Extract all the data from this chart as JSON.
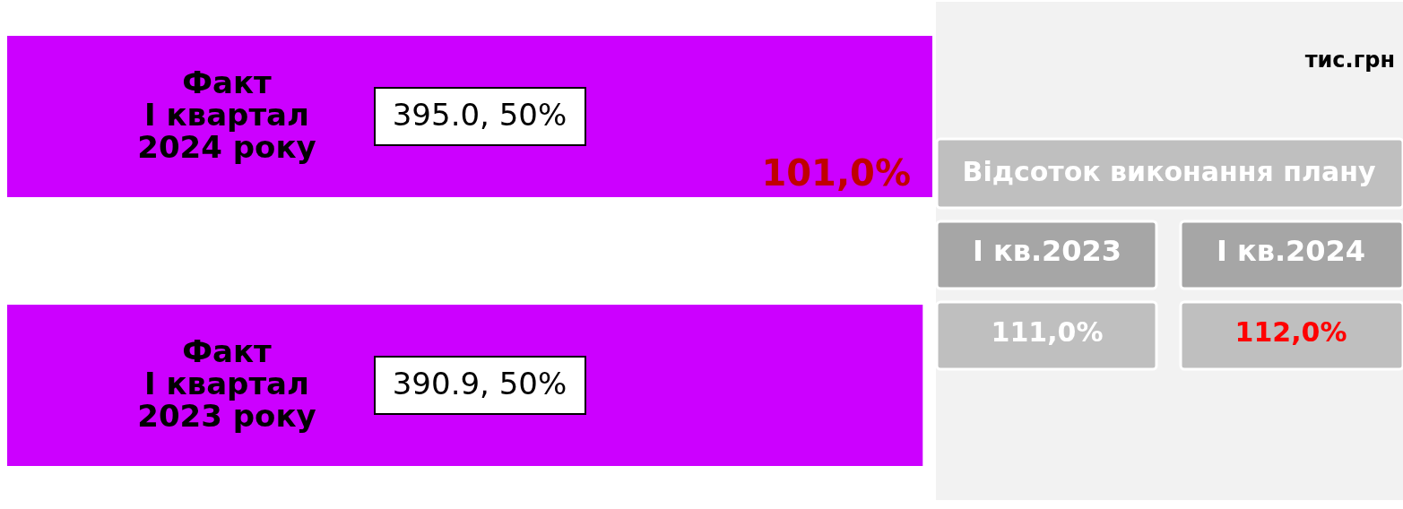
{
  "chart_data": {
    "type": "bar",
    "orientation": "horizontal",
    "categories": [
      "Факт\nІ квартал\n2024 року",
      "Факт\nІ квартал\n2023 року"
    ],
    "values": [
      395.0,
      390.9
    ],
    "color": "#cc00ff",
    "value_labels": [
      "395.0, 50%",
      "390.9, 50%"
    ],
    "tick_labels": false,
    "annotations": [
      "101,0%",
      "тис.грн",
      "Відсоток виконання плану",
      "І кв.2023",
      "І кв.2024",
      "111,0%",
      "112,0%"
    ]
  }
}
